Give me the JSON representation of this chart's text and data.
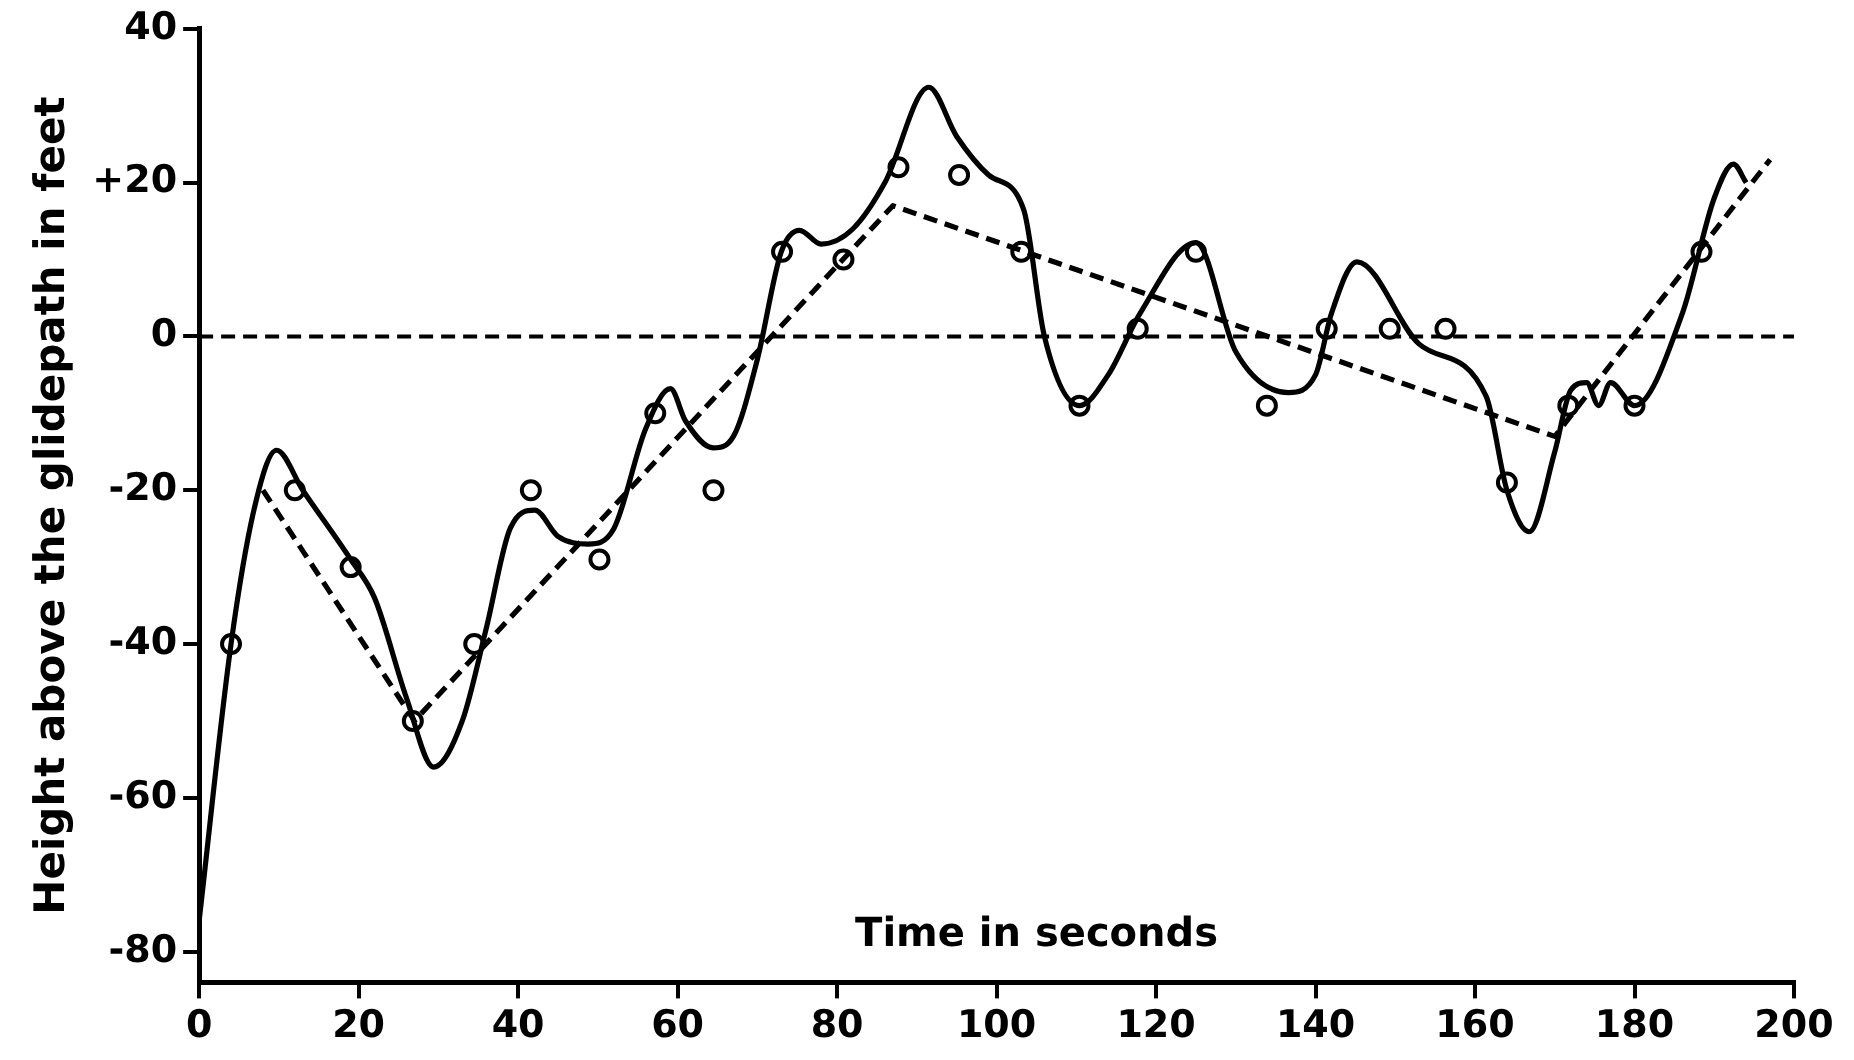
{
  "chart_data": {
    "type": "line",
    "xlabel": "Time in seconds",
    "ylabel": "Height above the glidepath in feet",
    "xlim": [
      0,
      200
    ],
    "xticks": [
      0,
      20,
      40,
      60,
      80,
      100,
      120,
      140,
      160,
      180,
      200
    ],
    "ylim": [
      -84,
      40
    ],
    "yticks": [
      -80,
      -60,
      -40,
      -20,
      0,
      {
        "value": 20,
        "label": "+20"
      },
      40
    ],
    "grid": false,
    "legend": false,
    "series": [
      {
        "color": "#000000",
        "line_style": "solid",
        "marker": "none",
        "x": [
          0,
          4,
          7,
          9.7,
          13,
          19,
          22,
          26,
          29.4,
          33,
          36,
          39,
          42.1,
          45,
          48.8,
          52,
          56,
          59.1,
          61,
          64.5,
          67,
          70,
          73,
          75.3,
          78,
          82,
          86,
          91.5,
          95,
          99,
          103.4,
          106,
          110.4,
          114,
          118,
          125,
          130,
          136.6,
          140,
          142,
          145.2,
          153,
          161.4,
          164,
          166.8,
          170,
          172,
          174,
          175.5,
          177,
          180,
          186,
          190,
          192.4,
          194
        ],
        "values": [
          -76,
          -40,
          -22,
          -14.8,
          -20,
          -29,
          -34,
          -47,
          -56,
          -50,
          -38,
          -25,
          -22.6,
          -26,
          -27,
          -25,
          -12,
          -6.8,
          -11,
          -14.5,
          -13,
          -3,
          11,
          13.8,
          12,
          14,
          20,
          32.4,
          26,
          21,
          16.5,
          0,
          -9,
          -5,
          3,
          12.2,
          -2,
          -7.3,
          -5,
          3,
          9.7,
          -1,
          -7.8,
          -20,
          -25.4,
          -15,
          -7,
          -6,
          -9,
          -6,
          -9,
          3,
          18,
          22.4,
          20
        ]
      },
      {
        "color": "#000000",
        "line_style": "dashed",
        "marker": "none",
        "x": [
          8,
          27,
          87,
          170,
          197
        ],
        "values": [
          -20,
          -50,
          17,
          -13,
          23
        ]
      },
      {
        "type": "scatter",
        "color": "#000000",
        "marker": "circle",
        "x": [
          4,
          12,
          19,
          26.8,
          34.5,
          41.6,
          50.2,
          57.2,
          64.5,
          73.1,
          80.8,
          87.7,
          95.3,
          103.1,
          110.4,
          117.7,
          125,
          133.9,
          141.4,
          149.3,
          156.3,
          164,
          171.7,
          180,
          188.4
        ],
        "values": [
          -40,
          -20,
          -30,
          -50,
          -40,
          -20,
          -29,
          -10,
          -20,
          11,
          10,
          22,
          21,
          11,
          -9,
          1,
          11,
          -9,
          1,
          1,
          1,
          -19,
          -9,
          -9,
          11
        ]
      }
    ],
    "ref_lines": [
      {
        "axis": "y",
        "value": 0,
        "color": "#000000",
        "line_style": "dashed"
      }
    ]
  }
}
